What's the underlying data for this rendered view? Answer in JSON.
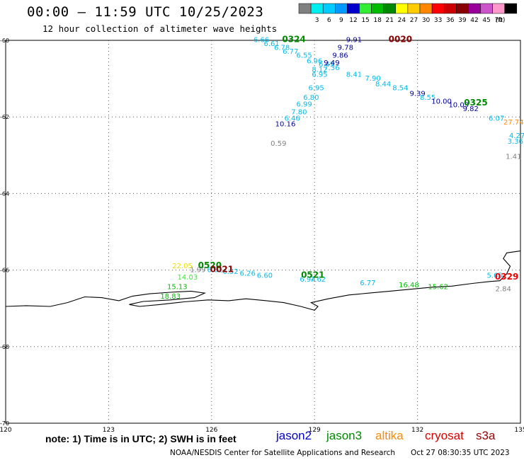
{
  "header": {
    "title": "00:00 – 11:59 UTC 10/25/2023",
    "subtitle": "12 hour collection of altimeter wave heights"
  },
  "legend": {
    "unit": "(ft)",
    "bins": [
      {
        "label": "",
        "color": "#808080"
      },
      {
        "label": "3",
        "color": "#00eeee"
      },
      {
        "label": "6",
        "color": "#00ccff"
      },
      {
        "label": "9",
        "color": "#0099ff"
      },
      {
        "label": "12",
        "color": "#0000cc"
      },
      {
        "label": "15",
        "color": "#33ee33"
      },
      {
        "label": "18",
        "color": "#00bb00"
      },
      {
        "label": "21",
        "color": "#008800"
      },
      {
        "label": "24",
        "color": "#ffff00"
      },
      {
        "label": "27",
        "color": "#ffcc00"
      },
      {
        "label": "30",
        "color": "#ff8800"
      },
      {
        "label": "33",
        "color": "#ff0000"
      },
      {
        "label": "36",
        "color": "#cc0000"
      },
      {
        "label": "39",
        "color": "#880000"
      },
      {
        "label": "42",
        "color": "#990099"
      },
      {
        "label": "45",
        "color": "#cc55cc"
      },
      {
        "label": "70",
        "color": "#ff99cc"
      },
      {
        "label": "",
        "color": "#000000"
      }
    ]
  },
  "chart_data": {
    "type": "scatter",
    "xlim": [
      120,
      135
    ],
    "ylim": [
      -70,
      -60
    ],
    "x_ticks": [
      "120",
      "123",
      "126",
      "129",
      "132",
      "135"
    ],
    "y_ticks": [
      "-60",
      "-62",
      "-64",
      "-66",
      "-68",
      "-70"
    ],
    "grid": true,
    "points": [
      {
        "lon": 127.45,
        "lat": -60.05,
        "text": "6.66",
        "color": "#00bbee"
      },
      {
        "lon": 127.75,
        "lat": -60.15,
        "text": "6.61",
        "color": "#00bbee"
      },
      {
        "lon": 128.05,
        "lat": -60.25,
        "text": "6.78",
        "color": "#00bbee"
      },
      {
        "lon": 128.3,
        "lat": -60.35,
        "text": "6.77",
        "color": "#00bbee"
      },
      {
        "lon": 128.7,
        "lat": -60.45,
        "text": "6.55",
        "color": "#00bbee"
      },
      {
        "lon": 129.0,
        "lat": -60.6,
        "text": "6.96",
        "color": "#00bbee"
      },
      {
        "lon": 129.35,
        "lat": -60.68,
        "text": "6.49",
        "color": "#00bbee"
      },
      {
        "lon": 129.15,
        "lat": -60.82,
        "text": "8.12",
        "color": "#00bbee"
      },
      {
        "lon": 129.5,
        "lat": -60.78,
        "text": "7.36",
        "color": "#00bbee"
      },
      {
        "lon": 129.15,
        "lat": -60.95,
        "text": "6.95",
        "color": "#00bbee"
      },
      {
        "lon": 129.05,
        "lat": -61.3,
        "text": "6.95",
        "color": "#00bbee"
      },
      {
        "lon": 128.9,
        "lat": -61.55,
        "text": "6.80",
        "color": "#00bbee"
      },
      {
        "lon": 128.7,
        "lat": -61.73,
        "text": "6.99",
        "color": "#00bbee"
      },
      {
        "lon": 128.55,
        "lat": -61.93,
        "text": "7.80",
        "color": "#00bbee"
      },
      {
        "lon": 128.35,
        "lat": -62.1,
        "text": "6.46",
        "color": "#00bbee"
      },
      {
        "lon": 128.15,
        "lat": -62.25,
        "text": "10.16",
        "color": "#000099"
      },
      {
        "lon": 127.95,
        "lat": -62.75,
        "text": "0.59",
        "color": "#808080"
      },
      {
        "lon": 130.15,
        "lat": -60.05,
        "text": "9.91",
        "color": "#000099"
      },
      {
        "lon": 129.9,
        "lat": -60.25,
        "text": "9.78",
        "color": "#000099"
      },
      {
        "lon": 129.75,
        "lat": -60.45,
        "text": "9.86",
        "color": "#000099"
      },
      {
        "lon": 129.5,
        "lat": -60.65,
        "text": "9.49",
        "color": "#000099"
      },
      {
        "lon": 130.15,
        "lat": -60.95,
        "text": "8.41",
        "color": "#00bbee"
      },
      {
        "lon": 130.7,
        "lat": -61.05,
        "text": "7.90",
        "color": "#00bbee"
      },
      {
        "lon": 131.0,
        "lat": -61.2,
        "text": "8.44",
        "color": "#00bbee"
      },
      {
        "lon": 131.5,
        "lat": -61.3,
        "text": "8.54",
        "color": "#00bbee"
      },
      {
        "lon": 132.0,
        "lat": -61.45,
        "text": "9.39",
        "color": "#000099"
      },
      {
        "lon": 132.3,
        "lat": -61.55,
        "text": "8.55",
        "color": "#00bbee"
      },
      {
        "lon": 132.7,
        "lat": -61.65,
        "text": "10.00",
        "color": "#000099"
      },
      {
        "lon": 133.2,
        "lat": -61.75,
        "text": "10.09",
        "color": "#000099"
      },
      {
        "lon": 133.55,
        "lat": -61.85,
        "text": "9.82",
        "color": "#000099"
      },
      {
        "lon": 134.3,
        "lat": -62.1,
        "text": "6.07",
        "color": "#00bbee"
      },
      {
        "lon": 134.8,
        "lat": -62.2,
        "text": "27.74",
        "color": "#ff8800"
      },
      {
        "lon": 134.9,
        "lat": -62.55,
        "text": "4.27",
        "color": "#00bbee"
      },
      {
        "lon": 134.85,
        "lat": -62.7,
        "text": "3.36",
        "color": "#00bbee"
      },
      {
        "lon": 134.8,
        "lat": -63.1,
        "text": "1.41",
        "color": "#808080"
      },
      {
        "lon": 125.15,
        "lat": -65.95,
        "text": "22.05",
        "color": "#eedd00"
      },
      {
        "lon": 125.6,
        "lat": -66.05,
        "text": "1.99",
        "color": "#808080"
      },
      {
        "lon": 126.1,
        "lat": -66.05,
        "text": "6.81",
        "color": "#00bbee"
      },
      {
        "lon": 126.55,
        "lat": -66.1,
        "text": "6.52",
        "color": "#00bbee"
      },
      {
        "lon": 127.05,
        "lat": -66.15,
        "text": "6.26",
        "color": "#00bbee"
      },
      {
        "lon": 127.55,
        "lat": -66.2,
        "text": "6.60",
        "color": "#00bbee"
      },
      {
        "lon": 128.8,
        "lat": -66.3,
        "text": "6.94",
        "color": "#00bbee"
      },
      {
        "lon": 129.1,
        "lat": -66.3,
        "text": "7.62",
        "color": "#00bbee"
      },
      {
        "lon": 125.3,
        "lat": -66.25,
        "text": "14.03",
        "color": "#33ee33"
      },
      {
        "lon": 125.0,
        "lat": -66.5,
        "text": "15.13",
        "color": "#00bb00"
      },
      {
        "lon": 124.8,
        "lat": -66.75,
        "text": "18.83",
        "color": "#00bb00"
      },
      {
        "lon": 130.55,
        "lat": -66.4,
        "text": "6.77",
        "color": "#00bbee"
      },
      {
        "lon": 131.75,
        "lat": -66.45,
        "text": "16.48",
        "color": "#00bb00"
      },
      {
        "lon": 132.6,
        "lat": -66.5,
        "text": "15.62",
        "color": "#00bb00"
      },
      {
        "lon": 134.25,
        "lat": -66.2,
        "text": "5.65",
        "color": "#00bbee"
      },
      {
        "lon": 134.5,
        "lat": -66.55,
        "text": "2.84",
        "color": "#808080"
      }
    ],
    "pass_labels": [
      {
        "lon": 128.4,
        "lat": -60.05,
        "text": "0324",
        "color": "#008800"
      },
      {
        "lon": 131.5,
        "lat": -60.05,
        "text": "0020",
        "color": "#880000"
      },
      {
        "lon": 133.7,
        "lat": -61.7,
        "text": "0325",
        "color": "#008800"
      },
      {
        "lon": 125.95,
        "lat": -65.95,
        "text": "0520",
        "color": "#008800"
      },
      {
        "lon": 126.3,
        "lat": -66.05,
        "text": "0021",
        "color": "#880000"
      },
      {
        "lon": 128.95,
        "lat": -66.2,
        "text": "0521",
        "color": "#008800"
      },
      {
        "lon": 134.6,
        "lat": -66.25,
        "text": "0329",
        "color": "#ee0000"
      }
    ],
    "coastline_lonlat": [
      [
        120.0,
        -66.95
      ],
      [
        120.6,
        -66.93
      ],
      [
        121.3,
        -66.95
      ],
      [
        121.8,
        -66.85
      ],
      [
        122.3,
        -66.7
      ],
      [
        122.8,
        -66.72
      ],
      [
        123.3,
        -66.8
      ],
      [
        123.7,
        -66.68
      ],
      [
        124.2,
        -66.62
      ],
      [
        124.8,
        -66.58
      ],
      [
        125.4,
        -66.55
      ],
      [
        125.8,
        -66.6
      ],
      [
        125.5,
        -66.72
      ],
      [
        124.8,
        -66.78
      ],
      [
        124.0,
        -66.82
      ],
      [
        123.6,
        -66.9
      ],
      [
        123.9,
        -66.95
      ],
      [
        124.5,
        -66.9
      ],
      [
        125.2,
        -66.83
      ],
      [
        125.9,
        -66.78
      ],
      [
        126.5,
        -66.8
      ],
      [
        127.0,
        -66.75
      ],
      [
        127.6,
        -66.8
      ],
      [
        128.1,
        -66.85
      ],
      [
        128.6,
        -66.95
      ],
      [
        129.0,
        -67.05
      ],
      [
        129.1,
        -66.95
      ],
      [
        128.9,
        -66.85
      ],
      [
        129.4,
        -66.75
      ],
      [
        130.0,
        -66.65
      ],
      [
        130.6,
        -66.6
      ],
      [
        131.2,
        -66.55
      ],
      [
        131.8,
        -66.5
      ],
      [
        132.4,
        -66.45
      ],
      [
        133.0,
        -66.42
      ],
      [
        133.6,
        -66.35
      ],
      [
        134.1,
        -66.3
      ],
      [
        134.4,
        -66.28
      ],
      [
        134.6,
        -66.1
      ],
      [
        134.7,
        -65.9
      ],
      [
        134.5,
        -65.7
      ],
      [
        134.6,
        -65.55
      ],
      [
        135.0,
        -65.5
      ]
    ]
  },
  "footer": {
    "note": "note: 1) Time is in UTC; 2) SWH is in feet",
    "satellites": [
      {
        "name": "jason2",
        "color": "#0000cc"
      },
      {
        "name": "jason3",
        "color": "#008800"
      },
      {
        "name": "altika",
        "color": "#ff8800"
      },
      {
        "name": "cryosat",
        "color": "#dd0000"
      },
      {
        "name": "s3a",
        "color": "#990000"
      }
    ],
    "credit": "NOAA/NESDIS Center for Satellite Applications and Research",
    "timestamp": "Oct 27 08:30:35 UTC 2023"
  }
}
